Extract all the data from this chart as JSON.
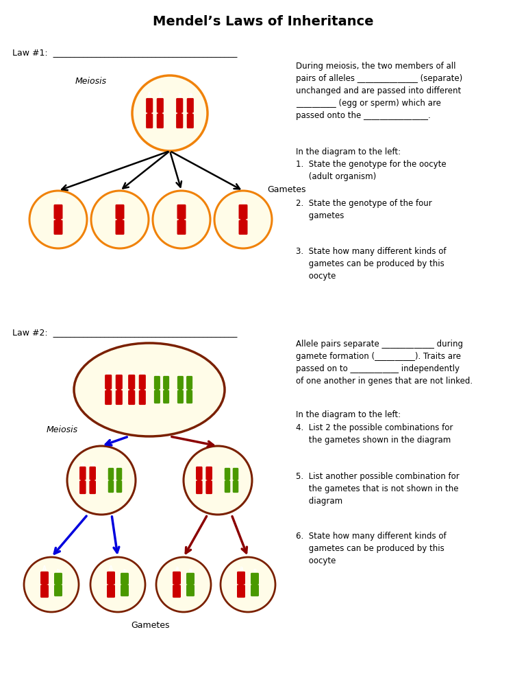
{
  "title": "Mendel’s Laws of Inheritance",
  "title_fontsize": 14,
  "background": "#ffffff",
  "law1_label": "Law #1:  ___________________________________________",
  "law2_label": "Law #2:  ___________________________________________",
  "meiosis_label": "Meiosis",
  "gametes_label": "Gametes",
  "cell_fill_light": "#fffce8",
  "cell_edge_orange": "#f0820a",
  "cell_edge_brown": "#7a2000",
  "chrom_red": "#cc0000",
  "chrom_green": "#4a9900",
  "right_text_1": "During meiosis, the two members of all\npairs of alleles _______________ (separate)\nunchanged and are passed into different\n__________ (egg or sperm) which are\npassed onto the ________________.",
  "right_text_2": "In the diagram to the left:",
  "q1": "1.  State the genotype for the oocyte\n     (adult organism)",
  "q2": "2.  State the genotype of the four\n     gametes",
  "q3": "3.  State how many different kinds of\n     gametes can be produced by this\n     oocyte",
  "right_text_3": "Allele pairs separate _____________ during\ngamete formation (__________). Traits are\npassed on to ____________ independently\nof one another in genes that are not linked.",
  "right_text_4": "In the diagram to the left:",
  "q4": "4.  List 2 the possible combinations for\n     the gametes shown in the diagram",
  "q5": "5.  List another possible combination for\n     the gametes that is not shown in the\n     diagram",
  "q6": "6.  State how many different kinds of\n     gametes can be produced by this\n     oocyte",
  "arrow_color_black": "#000000",
  "arrow_color_blue": "#0000dd",
  "arrow_color_darkred": "#8b0000"
}
